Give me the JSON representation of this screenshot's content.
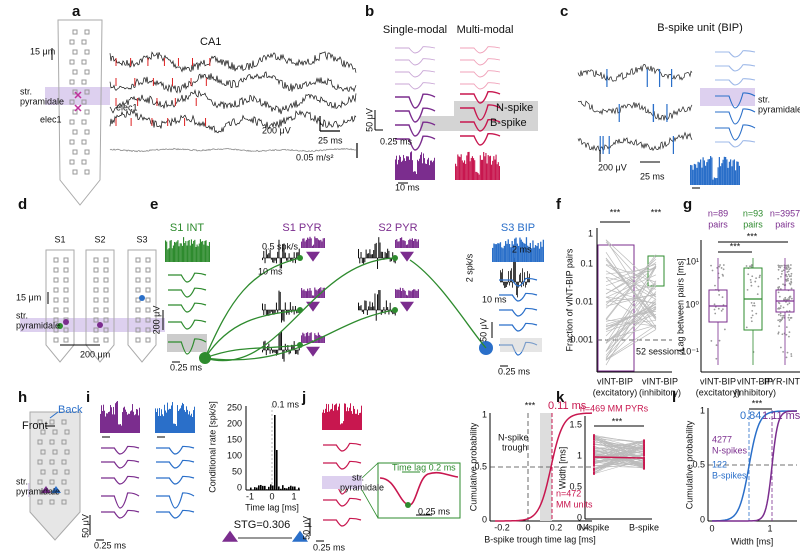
{
  "panels": {
    "a": {
      "label": "a",
      "title": "CA1",
      "depth": "15 μm",
      "layer": [
        "str.",
        "pyramidale"
      ],
      "elec_trace": "elec1",
      "elec_probe": "elec1",
      "voltage": "200 μV",
      "time": "25 ms",
      "accel": "0.05 m/s²"
    },
    "b": {
      "label": "b",
      "single": "Single-modal",
      "multi": "Multi-modal",
      "n_spike": "N-spike",
      "b_spike": "B-spike",
      "voltage": "50 μV",
      "time": "0.25 ms",
      "hist_time": "10 ms"
    },
    "c": {
      "label": "c",
      "title": "B-spike unit (BIP)",
      "layer": [
        "str.",
        "pyramidale"
      ],
      "voltage": "200 μV",
      "time": "25 ms"
    },
    "d": {
      "label": "d",
      "shanks": [
        "S1",
        "S2",
        "S3"
      ],
      "depth": "15 μm",
      "layer": [
        "str.",
        "pyramidale"
      ],
      "spacing": "200 μm"
    },
    "e": {
      "label": "e",
      "units": [
        "S1 INT",
        "S1 PYR",
        "S2 PYR",
        "S3 BIP"
      ],
      "rate_a": "0.5 spk/s",
      "time_a": "10 ms",
      "zoom": "2 ms",
      "rate_b": "2 spk/s",
      "time_b": "10 ms",
      "voltage_a": "200 μV",
      "time_c": "0.25 ms",
      "voltage_b": "50 μV",
      "time_d": "0.25 ms"
    },
    "f": {
      "label": "f",
      "y_label": "Fraction of vINT-BIP pairs",
      "yticks": [
        0.001,
        0.01,
        0.1,
        1
      ],
      "sig": [
        "***",
        "***"
      ],
      "sessions": "52 sessions",
      "x_labels": [
        [
          "vINT-BIP",
          "(excitatory)"
        ],
        [
          "vINT-BIP",
          "(inhibitory)"
        ]
      ]
    },
    "g": {
      "label": "g",
      "counts": [
        [
          "n=89",
          "pairs"
        ],
        [
          "n=93",
          "pairs"
        ],
        [
          "n=3957",
          "pairs"
        ]
      ],
      "yticks": [
        "10⁻¹",
        "10⁰",
        "10¹"
      ],
      "y_label": "Lag between pairs [ms]",
      "sig": [
        "***",
        "***"
      ],
      "x_labels": [
        [
          "vINT-BIP",
          "(excitatory)"
        ],
        [
          "vINT-BIP",
          "(inhibitory)"
        ],
        [
          "PYR-INT"
        ]
      ]
    },
    "h": {
      "label": "h",
      "back": "Back",
      "front": "Front",
      "layer": [
        "str.",
        "pyramidale"
      ]
    },
    "i": {
      "label": "i",
      "voltage": "50 μV",
      "time": "0.25 ms",
      "y_label": "Conditional rate [spk/s]",
      "yticks": [
        0,
        50,
        100,
        150,
        200,
        250
      ],
      "peak": "0.1 ms",
      "xticks": [
        -1,
        0,
        1
      ],
      "x_label": "Time lag [ms]",
      "stg": "STG=0.306"
    },
    "j": {
      "label": "j",
      "layer": [
        "str.",
        "pyramidale"
      ],
      "lag": "Time lag 0.2 ms",
      "inset_time": "0.25 ms",
      "voltage": "50 μV",
      "time": "0.25 ms",
      "sig": "***",
      "median": "0.11 ms",
      "trough": [
        "N-spike",
        "trough"
      ],
      "count": [
        "n=472",
        "MM units"
      ],
      "y_label": "Cumulative probability",
      "yticks": [
        0,
        0.5,
        1
      ],
      "xticks": [
        -0.2,
        0,
        0.2,
        0.4
      ],
      "x_label": "B-spike trough time lag [ms]"
    },
    "k": {
      "label": "k",
      "count": "n=469 MM PYRs",
      "sig": "***",
      "y_label": "Width [ms]",
      "yticks": [
        0,
        0.5,
        1,
        1.5
      ],
      "x_labels": [
        "N-spike",
        "B-spike"
      ]
    },
    "l": {
      "label": "l",
      "sig": "***",
      "median_b": "0.84",
      "median_n": "1.11 ms",
      "n_count": [
        "4277",
        "N-spikes"
      ],
      "b_count": [
        "122",
        "B-spikes"
      ],
      "y_label": "Cumulative probability",
      "yticks": [
        0,
        0.5,
        1
      ],
      "xticks": [
        0,
        1
      ],
      "x_label": "Width [ms]"
    }
  }
}
